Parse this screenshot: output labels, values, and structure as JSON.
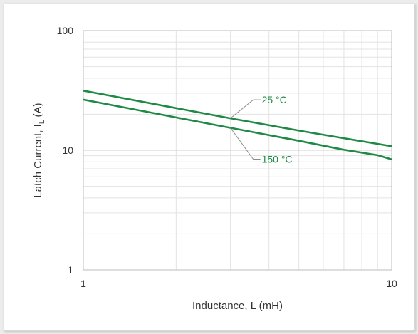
{
  "chart_data": {
    "type": "line",
    "xscale": "log",
    "yscale": "log",
    "xlim": [
      1,
      10
    ],
    "ylim": [
      1,
      100
    ],
    "x_ticks": [
      "1",
      "10"
    ],
    "y_ticks": [
      "1",
      "10",
      "100"
    ],
    "xlabel": "Inductance, L (mH)",
    "ylabel": {
      "main": "Latch Current, I",
      "subscript": "L",
      "unit": " (A)"
    },
    "grid": true,
    "series": [
      {
        "name": "25 °C",
        "color": "#1e8a45",
        "x": [
          1,
          2,
          3,
          5,
          7,
          10
        ],
        "y": [
          31.5,
          22.5,
          18.5,
          14.6,
          12.6,
          10.8
        ]
      },
      {
        "name": "150 °C",
        "color": "#1e8a45",
        "x": [
          1,
          2,
          3,
          5,
          7,
          9,
          10
        ],
        "y": [
          26.5,
          18.8,
          15.4,
          12.0,
          10.1,
          9.1,
          8.4
        ]
      }
    ],
    "annotations": [
      {
        "text": "25 °C",
        "points_to_series": 0,
        "at_x": 3
      },
      {
        "text": "150 °C",
        "points_to_series": 1,
        "at_x": 3
      }
    ]
  }
}
